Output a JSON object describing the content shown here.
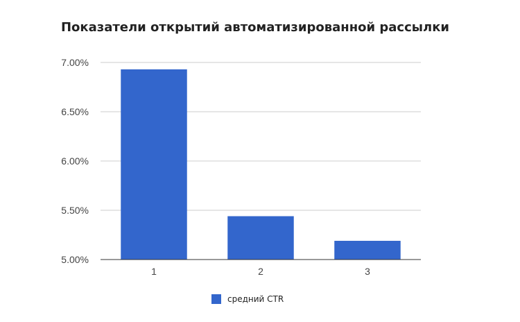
{
  "chart_data": {
    "type": "bar",
    "title": "Показатели открытий автоматизированной рассылки",
    "xlabel": "",
    "ylabel": "",
    "categories": [
      "1",
      "2",
      "3"
    ],
    "series": [
      {
        "name": "средний CTR",
        "color": "#3366cc",
        "values": [
          6.93,
          5.44,
          5.19
        ]
      }
    ],
    "ylim": [
      5.0,
      7.0
    ],
    "yticks": [
      5.0,
      5.5,
      6.0,
      6.5,
      7.0
    ],
    "ytick_labels": [
      "5.00%",
      "5.50%",
      "6.00%",
      "6.50%",
      "7.00%"
    ],
    "grid": true,
    "legend_position": "bottom"
  }
}
